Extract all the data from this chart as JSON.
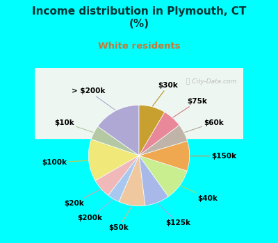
{
  "title": "Income distribution in Plymouth, CT\n(%)",
  "subtitle": "White residents",
  "title_color": "#003333",
  "subtitle_color": "#c87832",
  "bg_top": "#00ffff",
  "bg_chart_top": "#e8f0ee",
  "bg_chart_bottom": "#c8e8d8",
  "labels": [
    "> $200k",
    "$10k",
    "$100k",
    "$20k",
    "$200k",
    "$50k",
    "$125k",
    "$40k",
    "$150k",
    "$60k",
    "$75k",
    "$30k"
  ],
  "values": [
    13.5,
    4.0,
    12.0,
    5.5,
    3.5,
    7.5,
    7.0,
    9.0,
    8.5,
    5.0,
    5.5,
    7.5
  ],
  "colors": [
    "#b0a8d4",
    "#b4c8a4",
    "#f0e878",
    "#f0b8b8",
    "#a8c8f0",
    "#f0c8a0",
    "#a8b8e8",
    "#c8ee90",
    "#f0a850",
    "#c0b4a8",
    "#e88898",
    "#c8a030"
  ],
  "startangle": 90,
  "label_fontsize": 7.5,
  "label_color": "#000000",
  "line_color_map": {
    "> $200k": "#aaaacc",
    "$10k": "#b0c8a0",
    "$100k": "#d0c840",
    "$20k": "#e0a0a0",
    "$200k": "#a0b8e0",
    "$50k": "#e0b880",
    "$125k": "#a0a8d8",
    "$40k": "#a8d870",
    "$150k": "#e09040",
    "$60k": "#b0a898",
    "$75k": "#d07880",
    "$30k": "#b89020"
  }
}
